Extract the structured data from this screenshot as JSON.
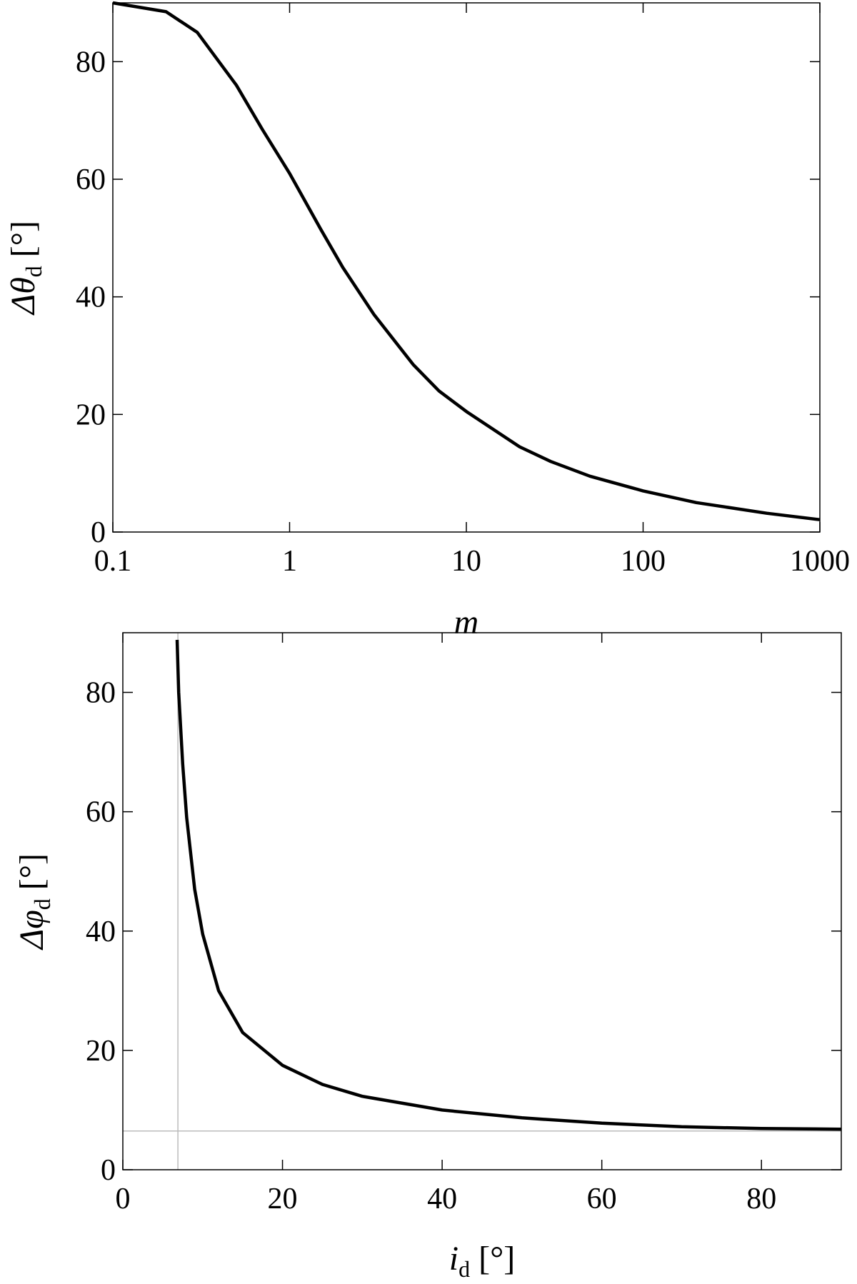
{
  "chart_data": [
    {
      "type": "line",
      "xscale": "log",
      "xlabel": {
        "main": "m"
      },
      "ylabel": {
        "main": "Δθ",
        "sub": "d",
        "unit": "[°]"
      },
      "x": [
        0.1,
        0.2,
        0.3,
        0.5,
        0.7,
        1,
        1.5,
        2,
        3,
        5,
        7,
        10,
        20,
        30,
        50,
        100,
        200,
        300,
        500,
        1000
      ],
      "series": [
        {
          "color": "#000000",
          "values": [
            90,
            88.5,
            85,
            76,
            68.5,
            61,
            51.5,
            45,
            37,
            28.5,
            24,
            20.5,
            14.5,
            12,
            9.5,
            7,
            5,
            4.2,
            3.2,
            2.1
          ]
        }
      ],
      "xlim": [
        0.1,
        1000
      ],
      "xticks": [
        0.1,
        1,
        10,
        100,
        1000
      ],
      "ylim": [
        0,
        90
      ],
      "yticks": [
        0,
        20,
        40,
        60,
        80
      ]
    },
    {
      "type": "line",
      "xscale": "linear",
      "xlabel": {
        "main": "i",
        "sub": "d",
        "unit": "[°]"
      },
      "ylabel": {
        "main": "Δφ",
        "sub": "d",
        "unit": "[°]"
      },
      "x": [
        6.8,
        7,
        7.5,
        8,
        9,
        10,
        12,
        15,
        20,
        25,
        30,
        40,
        50,
        60,
        70,
        80,
        90
      ],
      "series": [
        {
          "color": "#000000",
          "values": [
            88.8,
            80,
            68,
            59,
            47,
            39.5,
            30,
            23,
            17.5,
            14.3,
            12.3,
            10,
            8.7,
            7.8,
            7.2,
            6.9,
            6.8
          ]
        }
      ],
      "reference_lines": {
        "x": 6.9,
        "y": 6.5,
        "color": "#bbbbbb"
      },
      "xlim": [
        0,
        90
      ],
      "xticks": [
        0,
        20,
        40,
        60,
        80
      ],
      "ylim": [
        0,
        90
      ],
      "yticks": [
        0,
        20,
        40,
        60,
        80
      ]
    }
  ]
}
